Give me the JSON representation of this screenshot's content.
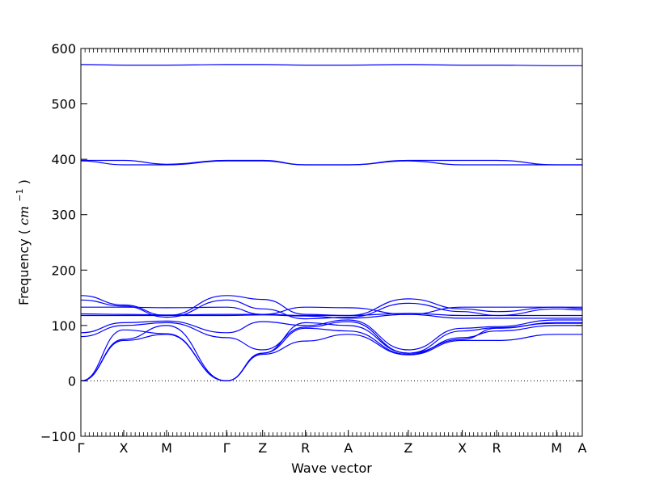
{
  "chart_data": {
    "type": "line",
    "title": "",
    "xlabel": "Wave vector",
    "ylabel": "Frequency",
    "ylabel_unit": "cm",
    "ylabel_unit_exp": "−1",
    "ylim": [
      -100,
      600
    ],
    "y_ticks": [
      -100,
      0,
      100,
      200,
      300,
      400,
      500,
      600
    ],
    "x_ticks": [
      {
        "label": "Γ",
        "x": 0
      },
      {
        "label": "X",
        "x": 0.5
      },
      {
        "label": "M",
        "x": 1.0
      },
      {
        "label": "Γ",
        "x": 1.7
      },
      {
        "label": "Z",
        "x": 2.12
      },
      {
        "label": "R",
        "x": 2.62
      },
      {
        "label": "A",
        "x": 3.12
      },
      {
        "label": "Z",
        "x": 3.82
      },
      {
        "label": "X",
        "x": 4.45
      },
      {
        "label": "R",
        "x": 4.85
      },
      {
        "label": "M",
        "x": 5.55
      },
      {
        "label": "A",
        "x": 5.85
      }
    ],
    "xlim": [
      0,
      5.85
    ],
    "zero_line": true,
    "line_color": "#0000ff",
    "series": [
      {
        "x": [
          0,
          0.5,
          1.0,
          1.7,
          2.12,
          2.62,
          3.12,
          3.82,
          4.45,
          4.85,
          5.55,
          5.85
        ],
        "y": [
          571,
          570,
          570,
          571,
          571,
          570,
          570,
          571,
          570,
          570,
          569,
          569
        ]
      },
      {
        "x": [
          0,
          0.5,
          1.0,
          1.7,
          2.12,
          2.62,
          3.12,
          3.82,
          4.45,
          4.85,
          5.55,
          5.85
        ],
        "y": [
          398,
          398,
          391,
          398,
          398,
          390,
          390,
          398,
          398,
          398,
          390,
          390
        ]
      },
      {
        "x": [
          0,
          0.5,
          1.0,
          1.7,
          2.12,
          2.62,
          3.12,
          3.82,
          4.45,
          4.85,
          5.55,
          5.85
        ],
        "y": [
          397,
          390,
          390,
          397,
          397,
          390,
          390,
          397,
          390,
          390,
          390,
          390
        ]
      },
      {
        "x": [
          0,
          0.5,
          1.0,
          1.7,
          2.12,
          2.62,
          3.12,
          3.82,
          4.45,
          4.85,
          5.55,
          5.85
        ],
        "y": [
          154,
          137,
          118,
          154,
          147,
          120,
          118,
          148,
          130,
          125,
          133,
          131
        ]
      },
      {
        "x": [
          0,
          0.5,
          1.0,
          1.7,
          2.12,
          2.62,
          3.12,
          3.82,
          4.45,
          4.85,
          5.55,
          5.85
        ],
        "y": [
          146,
          135,
          115,
          146,
          130,
          112,
          115,
          140,
          125,
          118,
          130,
          128
        ]
      },
      {
        "x": [
          0,
          0.5,
          1.0,
          1.7,
          2.12,
          2.62,
          3.12,
          3.82,
          4.45,
          4.85,
          5.55,
          5.85
        ],
        "y": [
          133,
          133,
          132,
          133,
          120,
          133,
          132,
          120,
          133,
          133,
          133,
          133
        ]
      },
      {
        "x": [
          0,
          0.5,
          1.0,
          1.7,
          2.12,
          2.62,
          3.12,
          3.82,
          4.45,
          4.85,
          5.55,
          5.85
        ],
        "y": [
          121,
          120,
          119,
          120,
          120,
          118,
          118,
          122,
          118,
          118,
          118,
          118
        ]
      },
      {
        "x": [
          0,
          0.5,
          1.0,
          1.7,
          2.12,
          2.62,
          3.12,
          3.82,
          4.45,
          4.85,
          5.55,
          5.85
        ],
        "y": [
          118,
          118,
          118,
          118,
          119,
          117,
          113,
          120,
          113,
          113,
          113,
          113
        ]
      },
      {
        "x": [
          0,
          0.5,
          1.0,
          1.7,
          2.12,
          2.62,
          3.12,
          3.82,
          4.45,
          4.85,
          5.55,
          5.85
        ],
        "y": [
          87,
          105,
          108,
          87,
          107,
          100,
          110,
          56,
          95,
          98,
          110,
          110
        ]
      },
      {
        "x": [
          0,
          0.5,
          1.0,
          1.7,
          2.12,
          2.62,
          3.12,
          3.82,
          4.45,
          4.85,
          5.55,
          5.85
        ],
        "y": [
          80,
          100,
          105,
          78,
          56,
          97,
          107,
          50,
          90,
          96,
          104,
          104
        ]
      },
      {
        "x": [
          0,
          0.5,
          1.0,
          1.7,
          2.12,
          2.62,
          3.12,
          3.82,
          4.45,
          4.85,
          5.55,
          5.85
        ],
        "y": [
          0,
          92,
          85,
          0,
          50,
          95,
          90,
          48,
          78,
          90,
          100,
          100
        ]
      },
      {
        "x": [
          0,
          0.5,
          1.0,
          1.7,
          2.12,
          2.62,
          3.12,
          3.82,
          4.45,
          4.85,
          5.55,
          5.85
        ],
        "y": [
          0,
          73,
          84,
          0,
          48,
          72,
          84,
          47,
          73,
          73,
          84,
          84
        ]
      },
      {
        "x": [
          0,
          0.5,
          1.0,
          1.7,
          2.12,
          2.62,
          3.12,
          3.82,
          4.45,
          4.85,
          5.55,
          5.85
        ],
        "y": [
          0,
          75,
          100,
          0,
          50,
          105,
          100,
          50,
          75,
          95,
          105,
          105
        ]
      }
    ]
  }
}
